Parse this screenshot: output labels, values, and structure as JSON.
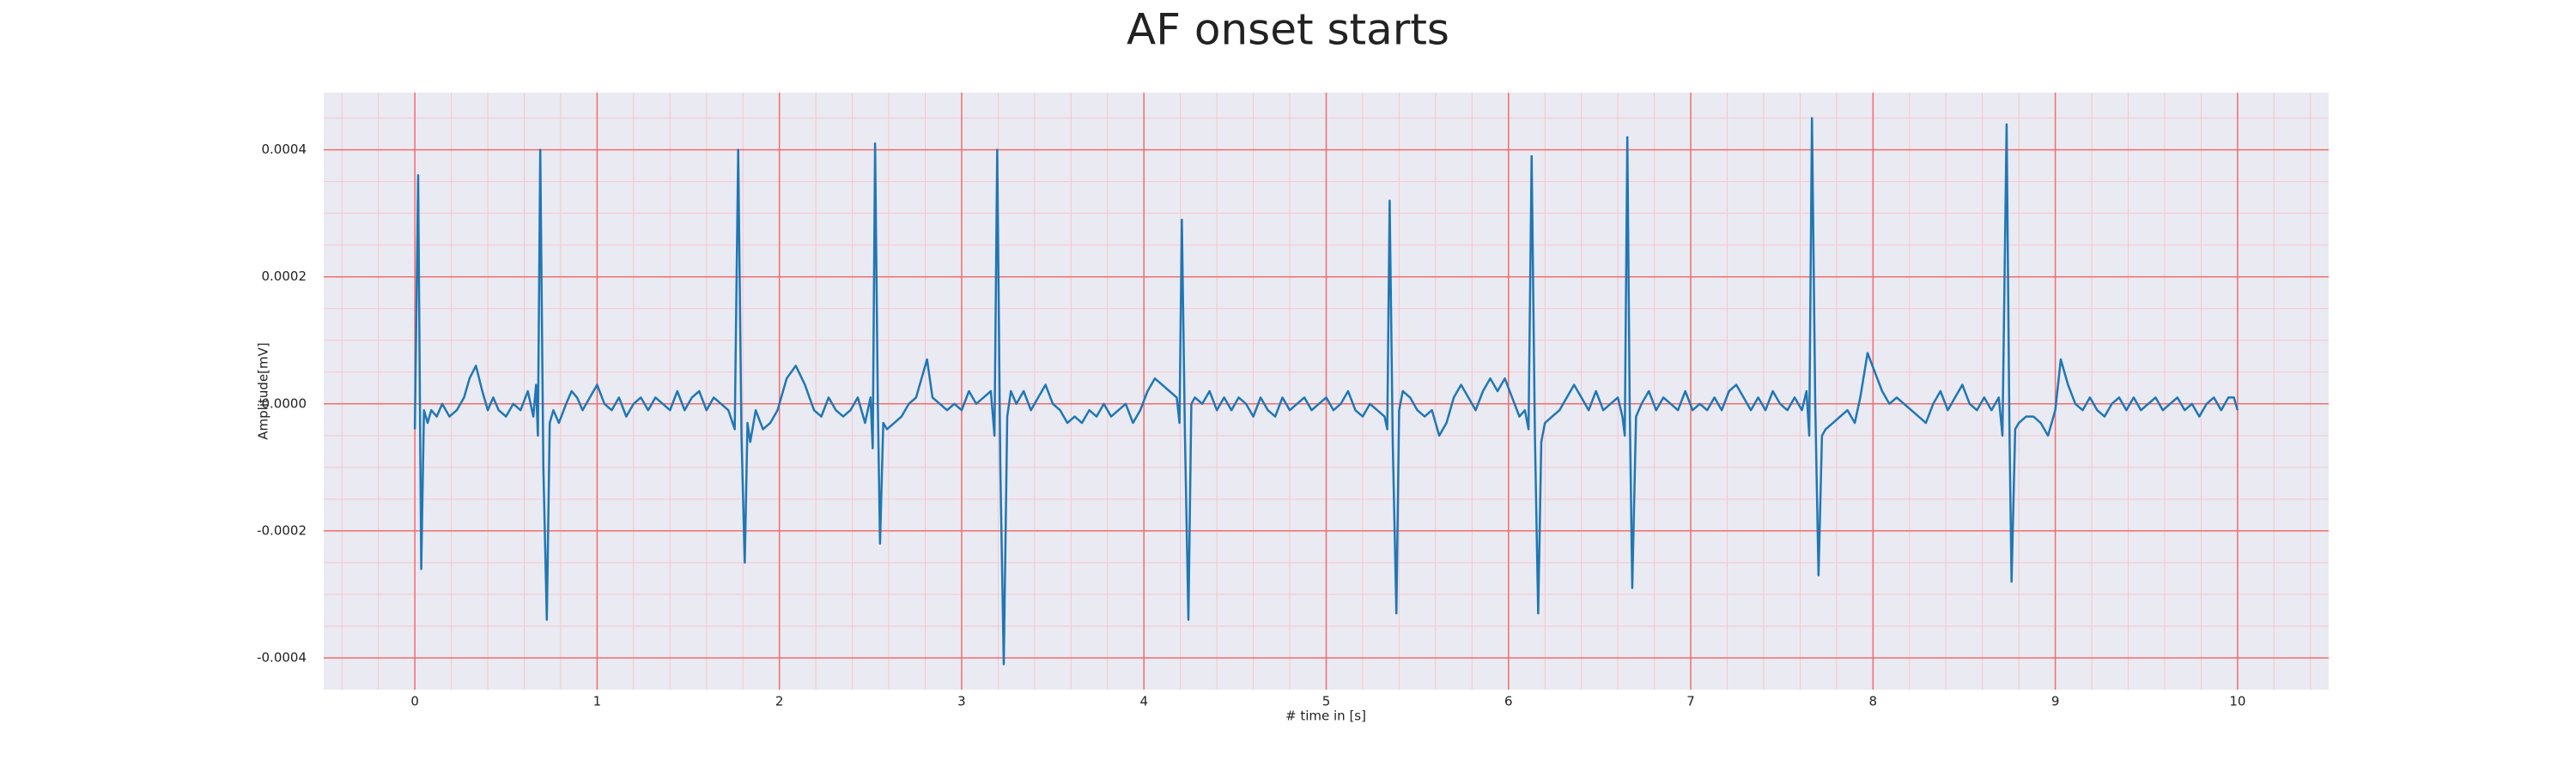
{
  "chart_data": {
    "type": "line",
    "title": "AF onset starts",
    "xlabel": "# time in [s]",
    "ylabel": "Amplitude[mV]",
    "x": [
      0,
      0.018,
      0.035,
      0.05,
      0.07,
      0.09,
      0.12,
      0.15,
      0.19,
      0.23,
      0.27,
      0.3,
      0.335,
      0.37,
      0.4,
      0.43,
      0.46,
      0.5,
      0.54,
      0.58,
      0.62,
      0.65,
      0.665,
      0.675,
      0.688,
      0.705,
      0.724,
      0.74,
      0.76,
      0.79,
      0.83,
      0.86,
      0.89,
      0.92,
      0.96,
      1,
      1.04,
      1.08,
      1.12,
      1.16,
      1.2,
      1.24,
      1.28,
      1.32,
      1.36,
      1.4,
      1.44,
      1.48,
      1.52,
      1.56,
      1.6,
      1.64,
      1.68,
      1.72,
      1.755,
      1.774,
      1.792,
      1.81,
      1.825,
      1.84,
      1.87,
      1.91,
      1.95,
      1.99,
      2.04,
      2.09,
      2.14,
      2.19,
      2.23,
      2.27,
      2.31,
      2.35,
      2.39,
      2.43,
      2.47,
      2.5,
      2.512,
      2.525,
      2.54,
      2.552,
      2.57,
      2.59,
      2.63,
      2.67,
      2.71,
      2.75,
      2.78,
      2.81,
      2.84,
      2.88,
      2.92,
      2.96,
      3,
      3.04,
      3.08,
      3.12,
      3.16,
      3.18,
      3.195,
      3.212,
      3.231,
      3.25,
      3.27,
      3.3,
      3.34,
      3.38,
      3.42,
      3.46,
      3.5,
      3.54,
      3.58,
      3.62,
      3.66,
      3.7,
      3.74,
      3.78,
      3.82,
      3.86,
      3.9,
      3.94,
      3.98,
      4.02,
      4.06,
      4.1,
      4.14,
      4.18,
      4.195,
      4.208,
      4.225,
      4.244,
      4.26,
      4.28,
      4.32,
      4.36,
      4.4,
      4.44,
      4.48,
      4.52,
      4.56,
      4.6,
      4.64,
      4.68,
      4.72,
      4.76,
      4.8,
      4.84,
      4.88,
      4.92,
      4.96,
      5,
      5.04,
      5.08,
      5.12,
      5.16,
      5.2,
      5.24,
      5.28,
      5.32,
      5.335,
      5.348,
      5.365,
      5.385,
      5.4,
      5.42,
      5.46,
      5.5,
      5.54,
      5.58,
      5.62,
      5.66,
      5.7,
      5.74,
      5.78,
      5.82,
      5.86,
      5.9,
      5.94,
      5.98,
      6.02,
      6.06,
      6.09,
      6.11,
      6.127,
      6.145,
      6.163,
      6.18,
      6.2,
      6.24,
      6.28,
      6.32,
      6.36,
      6.4,
      6.44,
      6.48,
      6.52,
      6.56,
      6.6,
      6.625,
      6.638,
      6.652,
      6.665,
      6.679,
      6.7,
      6.73,
      6.77,
      6.81,
      6.85,
      6.89,
      6.93,
      6.97,
      7.01,
      7.05,
      7.09,
      7.13,
      7.17,
      7.21,
      7.25,
      7.29,
      7.33,
      7.37,
      7.41,
      7.45,
      7.49,
      7.53,
      7.57,
      7.61,
      7.635,
      7.65,
      7.665,
      7.683,
      7.701,
      7.72,
      7.74,
      7.78,
      7.82,
      7.86,
      7.9,
      7.93,
      7.97,
      8.01,
      8.05,
      8.09,
      8.13,
      8.17,
      8.21,
      8.25,
      8.29,
      8.33,
      8.37,
      8.41,
      8.45,
      8.49,
      8.53,
      8.57,
      8.61,
      8.65,
      8.69,
      8.71,
      8.733,
      8.748,
      8.76,
      8.78,
      8.8,
      8.84,
      8.88,
      8.92,
      8.96,
      9,
      9.03,
      9.07,
      9.11,
      9.15,
      9.19,
      9.23,
      9.27,
      9.31,
      9.35,
      9.39,
      9.43,
      9.47,
      9.51,
      9.55,
      9.59,
      9.63,
      9.67,
      9.71,
      9.75,
      9.79,
      9.83,
      9.87,
      9.91,
      9.95,
      9.98,
      10
    ],
    "values": [
      -4e-05,
      0.00036,
      -0.00026,
      -1e-05,
      -3e-05,
      -1e-05,
      -2e-05,
      0,
      -2e-05,
      -1e-05,
      1e-05,
      4e-05,
      6e-05,
      2e-05,
      -1e-05,
      1e-05,
      -1e-05,
      -2e-05,
      0,
      -1e-05,
      2e-05,
      -2e-05,
      3e-05,
      -5e-05,
      0.0004,
      -0.0001,
      -0.00034,
      -3e-05,
      -1e-05,
      -3e-05,
      0,
      2e-05,
      1e-05,
      -1e-05,
      1e-05,
      3e-05,
      0,
      -1e-05,
      1e-05,
      -2e-05,
      0,
      1e-05,
      -1e-05,
      1e-05,
      0,
      -1e-05,
      2e-05,
      -1e-05,
      1e-05,
      2e-05,
      -1e-05,
      1e-05,
      0,
      -1e-05,
      -4e-05,
      0.0004,
      -5e-05,
      -0.00025,
      -3e-05,
      -6e-05,
      -1e-05,
      -4e-05,
      -3e-05,
      -1e-05,
      4e-05,
      6e-05,
      3e-05,
      -1e-05,
      -2e-05,
      1e-05,
      -1e-05,
      -2e-05,
      -1e-05,
      1e-05,
      -3e-05,
      1e-05,
      -7e-05,
      0.00041,
      0,
      -0.00022,
      -3e-05,
      -4e-05,
      -3e-05,
      -2e-05,
      0,
      1e-05,
      4e-05,
      7e-05,
      1e-05,
      0,
      -1e-05,
      0,
      -1e-05,
      2e-05,
      0,
      1e-05,
      2e-05,
      -5e-05,
      0.0004,
      -0.0001,
      -0.00041,
      -2e-05,
      2e-05,
      0,
      2e-05,
      -1e-05,
      1e-05,
      3e-05,
      0,
      -1e-05,
      -3e-05,
      -2e-05,
      -3e-05,
      -1e-05,
      -2e-05,
      0,
      -2e-05,
      -1e-05,
      0,
      -3e-05,
      -1e-05,
      2e-05,
      4e-05,
      3e-05,
      2e-05,
      1e-05,
      -3e-05,
      0.00029,
      -5e-05,
      -0.00034,
      0,
      1e-05,
      0,
      2e-05,
      -1e-05,
      1e-05,
      -1e-05,
      1e-05,
      0,
      -2e-05,
      1e-05,
      -1e-05,
      -2e-05,
      1e-05,
      -1e-05,
      0,
      1e-05,
      -1e-05,
      0,
      1e-05,
      -1e-05,
      0,
      2e-05,
      -1e-05,
      -2e-05,
      0,
      -1e-05,
      -2e-05,
      -4e-05,
      0.00032,
      -6e-05,
      -0.00033,
      -1e-05,
      2e-05,
      1e-05,
      -1e-05,
      -2e-05,
      -1e-05,
      -5e-05,
      -3e-05,
      1e-05,
      3e-05,
      1e-05,
      -1e-05,
      2e-05,
      4e-05,
      2e-05,
      4e-05,
      1e-05,
      -2e-05,
      -1e-05,
      -4e-05,
      0.00039,
      -5e-05,
      -0.00033,
      -6e-05,
      -3e-05,
      -2e-05,
      -1e-05,
      1e-05,
      3e-05,
      1e-05,
      -1e-05,
      2e-05,
      -1e-05,
      0,
      1e-05,
      -2e-05,
      -5e-05,
      0.00042,
      0,
      -0.00029,
      -2e-05,
      0,
      2e-05,
      -1e-05,
      1e-05,
      0,
      -1e-05,
      2e-05,
      -1e-05,
      0,
      -1e-05,
      1e-05,
      -1e-05,
      2e-05,
      3e-05,
      1e-05,
      -1e-05,
      1e-05,
      -1e-05,
      2e-05,
      0,
      -1e-05,
      1e-05,
      -1e-05,
      2e-05,
      -5e-05,
      0.00045,
      0,
      -0.00027,
      -5e-05,
      -4e-05,
      -3e-05,
      -2e-05,
      -1e-05,
      -3e-05,
      1e-05,
      8e-05,
      5e-05,
      2e-05,
      0,
      1e-05,
      0,
      -1e-05,
      -2e-05,
      -3e-05,
      0,
      2e-05,
      -1e-05,
      1e-05,
      3e-05,
      0,
      -1e-05,
      1e-05,
      -1e-05,
      1e-05,
      -5e-05,
      0.00044,
      -3e-05,
      -0.00028,
      -4e-05,
      -3e-05,
      -2e-05,
      -2e-05,
      -3e-05,
      -5e-05,
      -1e-05,
      7e-05,
      3e-05,
      0,
      -1e-05,
      1e-05,
      -1e-05,
      -2e-05,
      0,
      1e-05,
      -1e-05,
      1e-05,
      -1e-05,
      0,
      1e-05,
      -1e-05,
      0,
      1e-05,
      -1e-05,
      0,
      -2e-05,
      0,
      1e-05,
      -1e-05,
      1e-05,
      1e-05,
      -1e-05
    ],
    "color": "#1f77b4",
    "xlim": [
      -0.5,
      10.5
    ],
    "xticks": [
      0,
      1,
      2,
      3,
      4,
      5,
      6,
      7,
      8,
      9,
      10
    ],
    "ylim": [
      -0.00045,
      0.00049
    ],
    "yticks": [
      -0.0004,
      -0.0002,
      {
        "value": 0,
        "label": "0.0000"
      },
      0.0002,
      0.0004
    ],
    "grid": true,
    "grid_color": "#f26d6d",
    "minor_grid": true,
    "minor_grid_color": "#f7c6cc",
    "background": "#eaeaf2"
  }
}
